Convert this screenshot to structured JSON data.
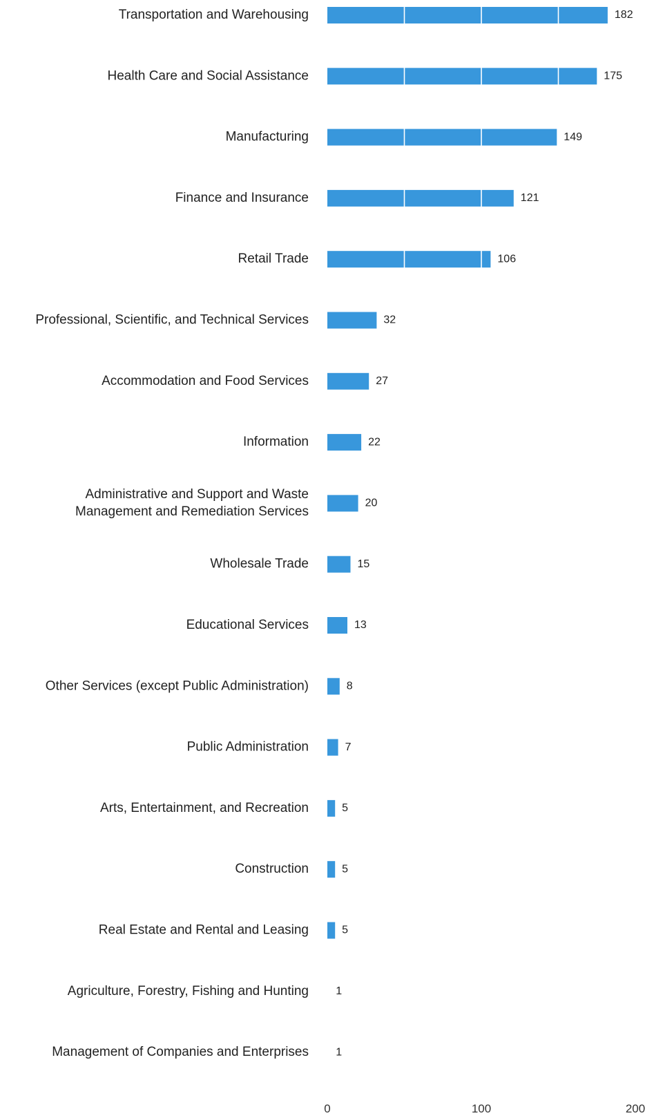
{
  "chart_data": {
    "type": "bar",
    "orientation": "horizontal",
    "categories": [
      "Transportation and Warehousing",
      "Health Care and Social Assistance",
      "Manufacturing",
      "Finance and Insurance",
      "Retail Trade",
      "Professional, Scientific, and Technical Services",
      "Accommodation and Food Services",
      "Information",
      "Administrative and Support and Waste Management and Remediation Services",
      "Wholesale Trade",
      "Educational Services",
      "Other Services (except Public Administration)",
      "Public Administration",
      "Arts, Entertainment, and Recreation",
      "Construction",
      "Real Estate and Rental and Leasing",
      "Agriculture, Forestry, Fishing and Hunting",
      "Management of Companies and Enterprises"
    ],
    "category_label_lines": [
      [
        "Transportation and Warehousing"
      ],
      [
        "Health Care and Social Assistance"
      ],
      [
        "Manufacturing"
      ],
      [
        "Finance and Insurance"
      ],
      [
        "Retail Trade"
      ],
      [
        "Professional, Scientific, and Technical Services"
      ],
      [
        "Accommodation and Food Services"
      ],
      [
        "Information"
      ],
      [
        "Administrative and Support and Waste",
        "Management and Remediation Services"
      ],
      [
        "Wholesale Trade"
      ],
      [
        "Educational Services"
      ],
      [
        "Other Services (except Public Administration)"
      ],
      [
        "Public Administration"
      ],
      [
        "Arts, Entertainment, and Recreation"
      ],
      [
        "Construction"
      ],
      [
        "Real Estate and Rental and Leasing"
      ],
      [
        "Agriculture, Forestry, Fishing and Hunting"
      ],
      [
        "Management of Companies and Enterprises"
      ]
    ],
    "values": [
      182,
      175,
      149,
      121,
      106,
      32,
      27,
      22,
      20,
      15,
      13,
      8,
      7,
      5,
      5,
      5,
      1,
      1
    ],
    "value_labels": [
      "182",
      "175",
      "149",
      "121",
      "106",
      "32",
      "27",
      "22",
      "20",
      "15",
      "13",
      "8",
      "7",
      "5",
      "5",
      "5",
      "1",
      "1"
    ],
    "xlim": [
      0,
      200
    ],
    "x_ticks": [
      0,
      100,
      200
    ],
    "x_tick_labels": [
      "0",
      "100",
      "200"
    ],
    "grid": true,
    "grid_interval": 50,
    "title": "",
    "xlabel": "",
    "ylabel": "",
    "legend": "none",
    "bar_color": "#3897DC",
    "grid_color": "#ffffff",
    "text_color": "#222222"
  }
}
